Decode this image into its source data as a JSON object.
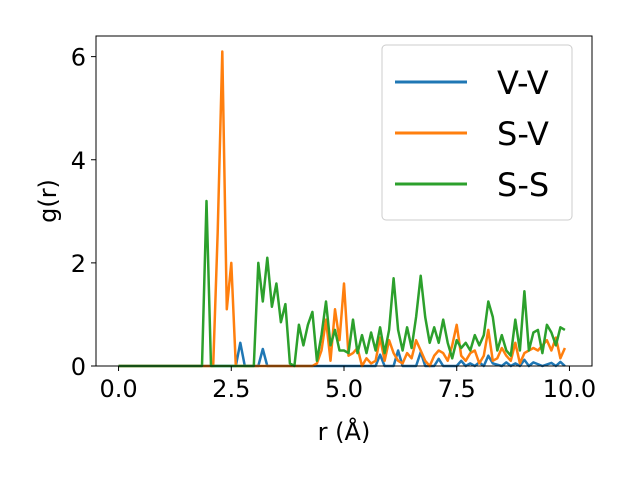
{
  "chart_data": {
    "type": "line",
    "xlabel": "r (Å)",
    "ylabel": "g(r)",
    "xlim": [
      -0.5,
      10.5
    ],
    "ylim": [
      0,
      6.4
    ],
    "xticks": [
      0.0,
      2.5,
      5.0,
      7.5,
      10.0
    ],
    "xtick_labels": [
      "0.0",
      "2.5",
      "5.0",
      "7.5",
      "10.0"
    ],
    "yticks": [
      0,
      2,
      4,
      6
    ],
    "ytick_labels": [
      "0",
      "2",
      "4",
      "6"
    ],
    "grid": false,
    "legend_position": "top-right",
    "series": [
      {
        "name": "V-V",
        "color": "#1f77b4",
        "x": [
          0.0,
          2.6,
          2.7,
          2.8,
          3.1,
          3.2,
          3.3,
          5.7,
          5.8,
          5.9,
          6.1,
          6.2,
          6.3,
          6.6,
          6.7,
          6.8,
          7.0,
          7.1,
          7.2,
          7.5,
          7.6,
          7.7,
          7.8,
          7.9,
          8.0,
          8.1,
          8.2,
          8.3,
          8.5,
          8.6,
          8.7,
          8.8,
          8.9,
          9.0,
          9.1,
          9.2,
          9.4,
          9.6,
          9.7,
          9.8,
          9.9
        ],
        "y": [
          0,
          0,
          0.45,
          0,
          0,
          0.33,
          0,
          0,
          0.22,
          0,
          0,
          0.3,
          0,
          0,
          0.27,
          0,
          0,
          0.14,
          0,
          0,
          0.1,
          0,
          0.05,
          0,
          0.07,
          0,
          0.2,
          0.05,
          0,
          0.07,
          0,
          0.05,
          0,
          0.12,
          0,
          0.07,
          0,
          0.06,
          0,
          0.08,
          0
        ]
      },
      {
        "name": "S-V",
        "color": "#ff7f0e",
        "x": [
          0.0,
          2.1,
          2.2,
          2.3,
          2.4,
          2.5,
          2.6,
          4.3,
          4.4,
          4.5,
          4.6,
          4.7,
          4.8,
          4.9,
          5.0,
          5.1,
          5.2,
          5.3,
          5.4,
          5.5,
          5.6,
          5.7,
          5.8,
          5.9,
          6.0,
          6.1,
          6.2,
          6.3,
          6.4,
          6.5,
          6.6,
          6.7,
          6.8,
          6.9,
          7.0,
          7.1,
          7.2,
          7.3,
          7.4,
          7.5,
          7.6,
          7.7,
          7.8,
          7.9,
          8.0,
          8.1,
          8.2,
          8.3,
          8.4,
          8.5,
          8.6,
          8.7,
          8.8,
          8.9,
          9.0,
          9.1,
          9.2,
          9.3,
          9.4,
          9.5,
          9.6,
          9.7,
          9.8,
          9.9
        ],
        "y": [
          0,
          0,
          2.6,
          6.1,
          1.1,
          2.0,
          0,
          0,
          0.05,
          0.3,
          0.9,
          0.1,
          1.1,
          0.5,
          1.6,
          0.2,
          0.25,
          0.35,
          0.0,
          0.15,
          0.05,
          0.1,
          0.55,
          0.1,
          0.5,
          0.25,
          0.1,
          0.05,
          0.25,
          0.15,
          0.5,
          0.3,
          0.1,
          0.0,
          0.2,
          0.3,
          0.25,
          0.1,
          0.4,
          0.8,
          0.2,
          0.1,
          0.25,
          0.3,
          0.05,
          0.2,
          0.7,
          0.1,
          0.15,
          0.35,
          0.2,
          0.1,
          0.45,
          0.05,
          0.25,
          0.3,
          0.35,
          0.3,
          0.4,
          0.5,
          0.3,
          0.55,
          0.15,
          0.35
        ]
      },
      {
        "name": "S-S",
        "color": "#2ca02c",
        "x": [
          0.0,
          1.85,
          1.95,
          2.05,
          3.0,
          3.1,
          3.2,
          3.3,
          3.4,
          3.5,
          3.6,
          3.7,
          3.8,
          3.9,
          4.0,
          4.1,
          4.2,
          4.3,
          4.4,
          4.5,
          4.6,
          4.7,
          4.8,
          4.9,
          5.0,
          5.1,
          5.2,
          5.3,
          5.4,
          5.5,
          5.6,
          5.7,
          5.8,
          5.9,
          6.0,
          6.1,
          6.2,
          6.3,
          6.4,
          6.5,
          6.6,
          6.7,
          6.8,
          6.9,
          7.0,
          7.1,
          7.2,
          7.3,
          7.4,
          7.5,
          7.6,
          7.7,
          7.8,
          7.9,
          8.0,
          8.1,
          8.2,
          8.3,
          8.4,
          8.5,
          8.6,
          8.7,
          8.8,
          8.9,
          9.0,
          9.1,
          9.2,
          9.3,
          9.4,
          9.5,
          9.6,
          9.7,
          9.8,
          9.9
        ],
        "y": [
          0,
          0,
          3.2,
          0,
          0,
          2.0,
          1.25,
          2.1,
          1.15,
          1.6,
          0.85,
          1.2,
          0.05,
          0.0,
          0.8,
          0.4,
          0.8,
          1.05,
          0.1,
          0.6,
          1.25,
          0.4,
          0.7,
          0.3,
          0.3,
          0.25,
          0.9,
          0.25,
          0.6,
          0.25,
          0.65,
          0.3,
          0.75,
          0.25,
          0.7,
          1.7,
          0.7,
          0.3,
          0.75,
          0.35,
          0.95,
          1.75,
          0.95,
          0.45,
          0.75,
          0.45,
          0.9,
          0.45,
          0.15,
          0.5,
          0.35,
          0.45,
          0.3,
          0.6,
          0.4,
          0.6,
          1.25,
          0.95,
          0.3,
          0.6,
          0.3,
          0.2,
          0.9,
          0.3,
          1.45,
          0.3,
          0.65,
          0.7,
          0.25,
          0.8,
          0.65,
          0.4,
          0.75,
          0.7
        ]
      }
    ]
  }
}
